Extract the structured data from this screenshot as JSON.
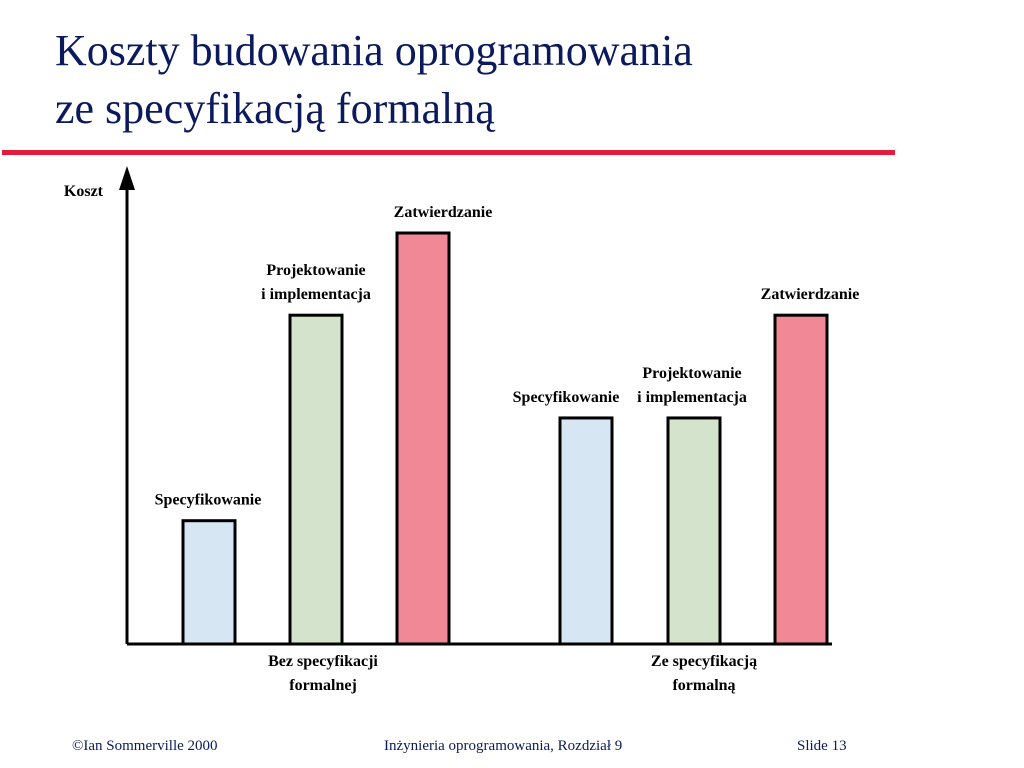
{
  "slide": {
    "title_line1": "Koszty budowania oprogramowania",
    "title_line2": "ze specyfikacją formalną"
  },
  "footer": {
    "copyright": "©Ian Sommerville 2000",
    "course": "Inżynieria oprogramowania, Rozdział 9",
    "slide_number": "Slide  13"
  },
  "colors": {
    "title": "#0b1a5c",
    "accent_rule": "#e41b3c",
    "phase_specification": "#d6e6f2",
    "phase_design": "#d4e3cb",
    "phase_validation": "#f08896"
  },
  "chart_data": {
    "type": "bar",
    "ylabel": "Koszt",
    "axis_values": false,
    "grid": false,
    "ylim": [
      0,
      100
    ],
    "groups": [
      {
        "label_lines": [
          "Bez specyfikacji",
          "formalnej"
        ],
        "bars": [
          {
            "phase": "specification",
            "label_lines": [
              "Specyfikowanie"
            ],
            "value": 30
          },
          {
            "phase": "design",
            "label_lines": [
              "Projektowanie",
              "i implementacja"
            ],
            "value": 80
          },
          {
            "phase": "validation",
            "label_lines": [
              "Zatwierdzanie"
            ],
            "value": 100
          }
        ]
      },
      {
        "label_lines": [
          "Ze specyfikacją",
          "formalną"
        ],
        "bars": [
          {
            "phase": "specification",
            "label_lines": [
              "Specyfikowanie"
            ],
            "value": 55
          },
          {
            "phase": "design",
            "label_lines": [
              "Projektowanie",
              "i implementacja"
            ],
            "value": 55
          },
          {
            "phase": "validation",
            "label_lines": [
              "Zatwierdzanie"
            ],
            "value": 80
          }
        ]
      }
    ]
  }
}
